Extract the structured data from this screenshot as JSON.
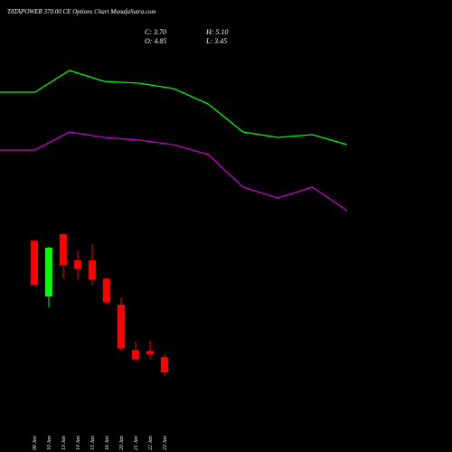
{
  "chart_data": [
    {
      "type": "candlestick",
      "title": "TATAPOWER 370.00  CE Options  Chart MunafaSutra.com",
      "ohlc_labels": [
        "C: 3.70",
        "H: 5.10",
        "O: 4.85",
        "L: 3.45"
      ],
      "categories": [
        "09 Jan",
        "10 Jan",
        "13 Jan",
        "14 Jan",
        "15 Jan",
        "16 Jan",
        "20 Jan",
        "21 Jan",
        "22 Jan",
        "23 Jan"
      ],
      "open": [
        13.55,
        9.38,
        14.04,
        12.08,
        12.08,
        10.71,
        8.77,
        5.38,
        5.31,
        4.85
      ],
      "high": [
        13.6,
        13.1,
        14.1,
        12.82,
        13.35,
        10.8,
        9.3,
        5.99,
        6.05,
        5.1
      ],
      "low": [
        10.2,
        8.57,
        10.71,
        10.64,
        10.26,
        8.77,
        5.3,
        4.61,
        4.72,
        3.45
      ],
      "close": [
        10.25,
        13.03,
        11.73,
        11.47,
        10.66,
        8.95,
        5.51,
        4.7,
        5.04,
        3.7
      ],
      "up_color": "#00ff00",
      "down_color": "#ff0000",
      "ylim": [
        -2.24,
        31.54
      ]
    },
    {
      "type": "line",
      "categories": [
        null,
        null,
        null,
        null,
        null,
        null,
        null,
        null,
        null,
        null,
        null
      ],
      "series": [
        {
          "color": "#00ff00",
          "values": [
            79,
            79,
            91,
            85,
            84,
            81,
            72.5,
            57,
            54,
            55.5,
            50
          ]
        },
        {
          "color": "#cc00cc",
          "values": [
            47,
            47,
            57,
            54,
            52.5,
            50,
            44.5,
            26.5,
            20.5,
            26.5,
            13.5
          ]
        }
      ],
      "ylim": [
        0,
        100
      ]
    }
  ]
}
